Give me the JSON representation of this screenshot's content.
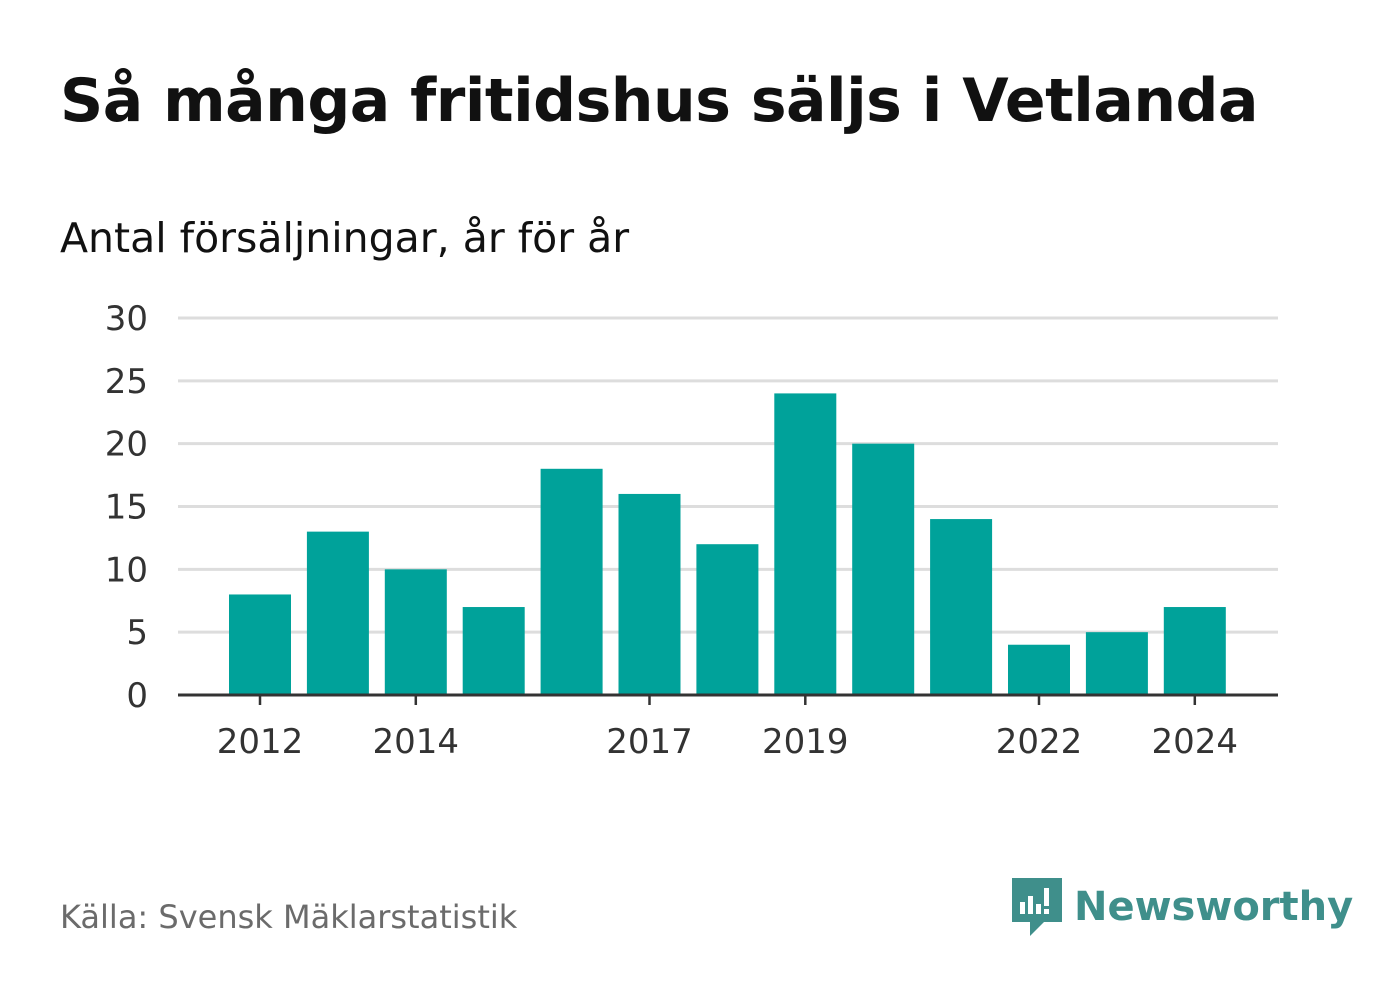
{
  "title": "Så många fritidshus säljs i Vetlanda",
  "subtitle": "Antal försäljningar, år för år",
  "source": "Källa: Svensk Mäklarstatistik",
  "brand": {
    "name": "Newsworthy",
    "color": "#3f8f8b",
    "icon": "newsworthy-logo-icon"
  },
  "colors": {
    "bar": "#00a29a",
    "grid": "#dddddd",
    "axis": "#333333"
  },
  "chart_data": {
    "type": "bar",
    "categories": [
      "2012",
      "2013",
      "2014",
      "2015",
      "2016",
      "2017",
      "2018",
      "2019",
      "2020",
      "2021",
      "2022",
      "2023",
      "2024"
    ],
    "values": [
      8,
      13,
      10,
      7,
      18,
      16,
      12,
      24,
      20,
      14,
      4,
      5,
      7
    ],
    "xticks": [
      "2012",
      "2014",
      "2017",
      "2019",
      "2022",
      "2024"
    ],
    "yticks": [
      0,
      5,
      10,
      15,
      20,
      25,
      30
    ],
    "ylim": [
      0,
      30
    ],
    "grid": true,
    "legend": false
  }
}
